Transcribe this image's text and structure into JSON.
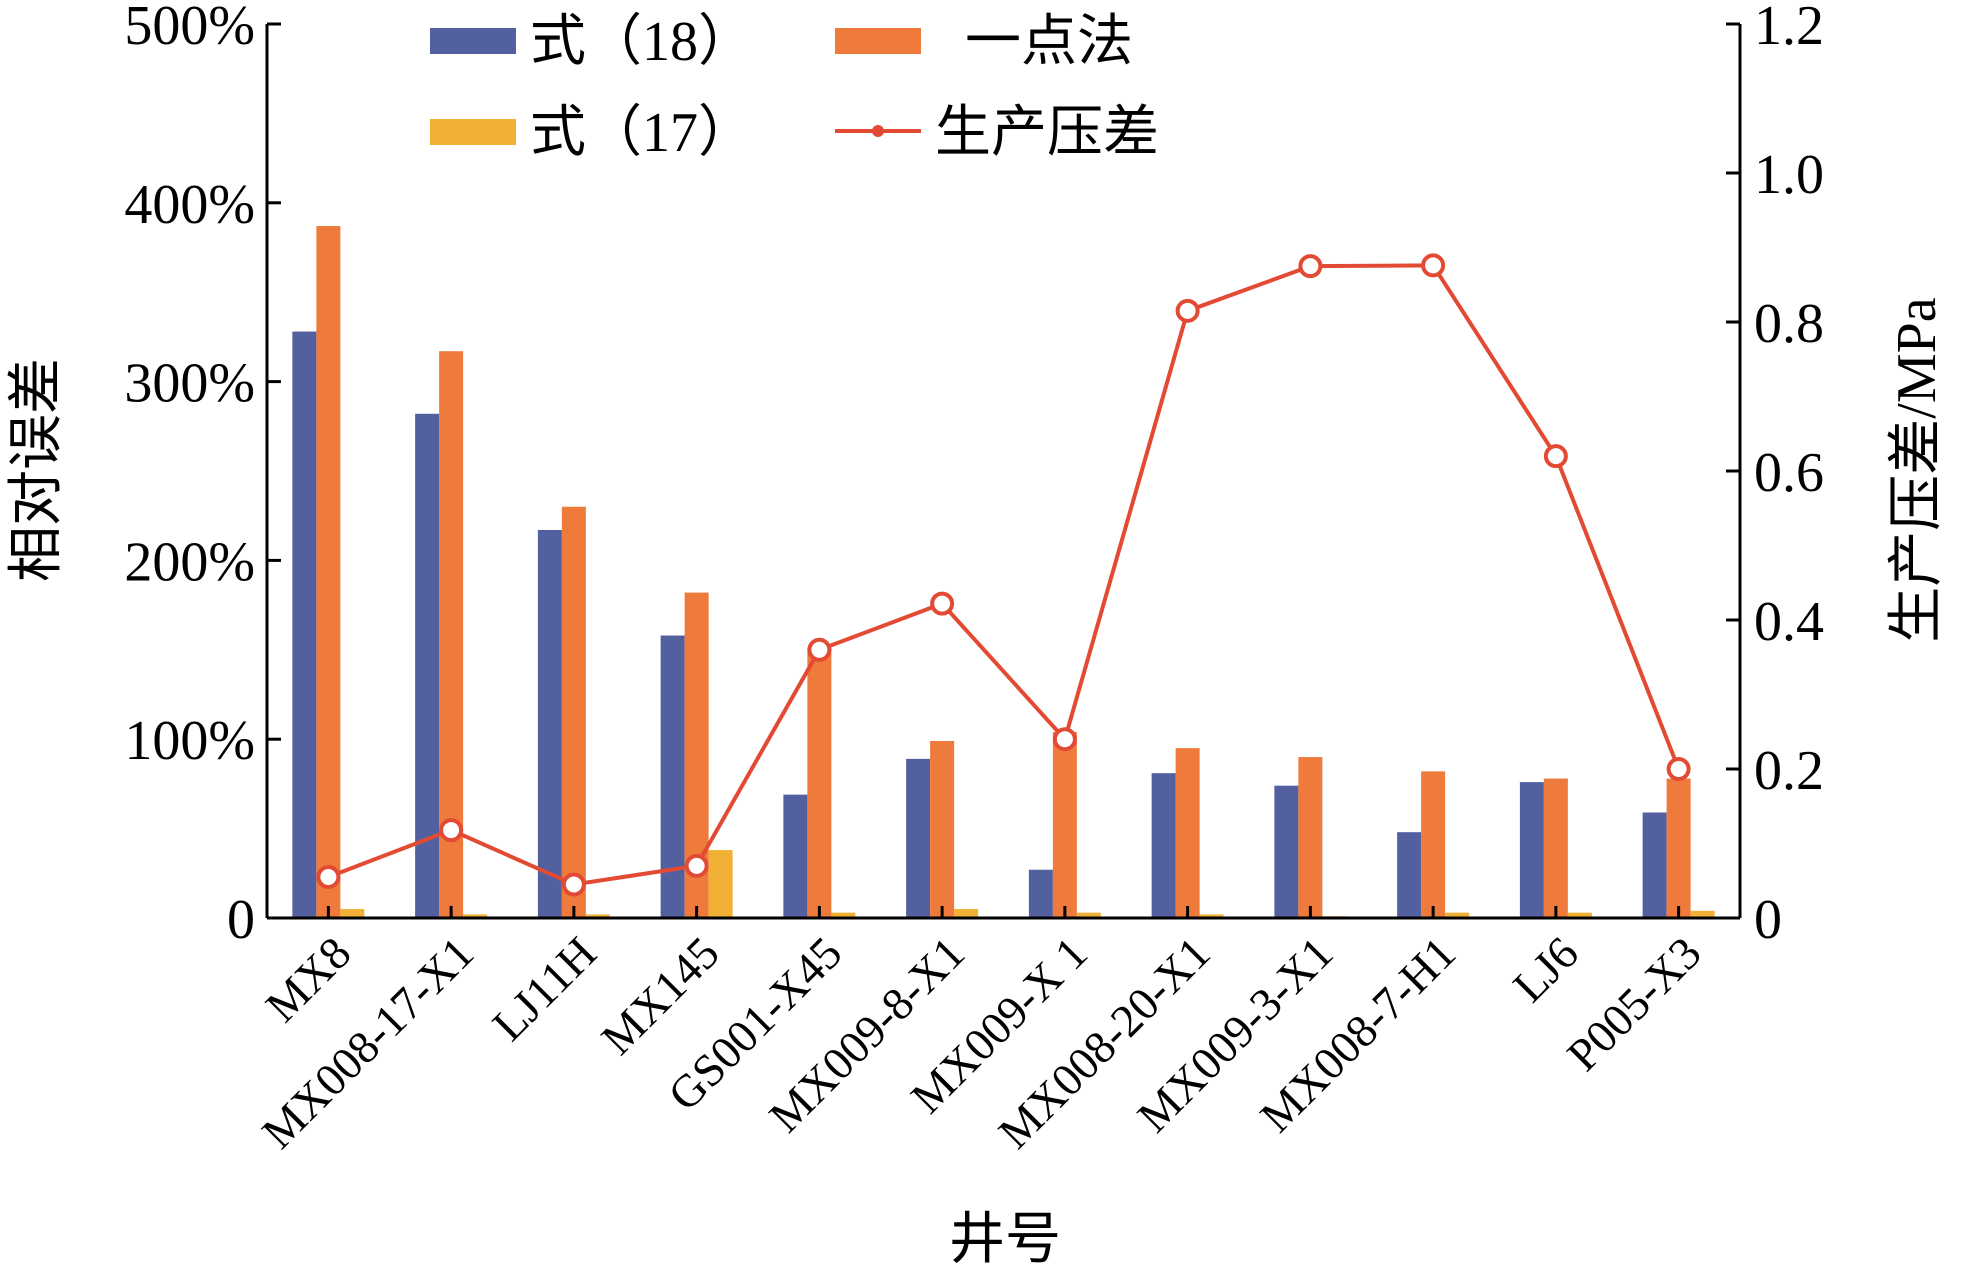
{
  "chart_data": {
    "type": "bar",
    "xlabel": "井号",
    "ylabel_left": "相对误差",
    "ylabel_right": "生产压差/MPa",
    "categories": [
      "MX8",
      "MX008-17-X1",
      "LJ11H",
      "MX145",
      "GS001-X45",
      "MX009-8-X1",
      "MX009-X 1",
      "MX008-20-X1",
      "MX009-3-X1",
      "MX008-7-H1",
      "LJ6",
      "P005-X3"
    ],
    "ylim_left": [
      0,
      500
    ],
    "yticks_left": [
      "0",
      "100%",
      "200%",
      "300%",
      "400%",
      "500%"
    ],
    "ylim_right": [
      0,
      1.2
    ],
    "yticks_right": [
      "0",
      "0.2",
      "0.4",
      "0.6",
      "0.8",
      "1.0",
      "1.2"
    ],
    "series": [
      {
        "name": "式（18）",
        "kind": "bar",
        "axis": "left",
        "color": "#5360a0",
        "values": [
          328,
          282,
          217,
          158,
          69,
          89,
          27,
          81,
          74,
          48,
          76,
          59
        ]
      },
      {
        "name": "一点法",
        "kind": "bar",
        "axis": "left",
        "color": "#ee7b3b",
        "values": [
          387,
          317,
          230,
          182,
          151,
          99,
          104,
          95,
          90,
          82,
          78,
          78
        ]
      },
      {
        "name": "式（17）",
        "kind": "bar",
        "axis": "left",
        "color": "#f2b134",
        "values": [
          5,
          2,
          2,
          38,
          3,
          5,
          3,
          2,
          1,
          3,
          3,
          4
        ]
      },
      {
        "name": "生产压差",
        "kind": "line",
        "axis": "right",
        "color": "#e34a33",
        "values": [
          0.055,
          0.118,
          0.045,
          0.07,
          0.36,
          0.422,
          0.24,
          0.815,
          0.875,
          0.876,
          0.62,
          0.2
        ]
      }
    ],
    "grid": false,
    "legend_placement": "top-left"
  }
}
